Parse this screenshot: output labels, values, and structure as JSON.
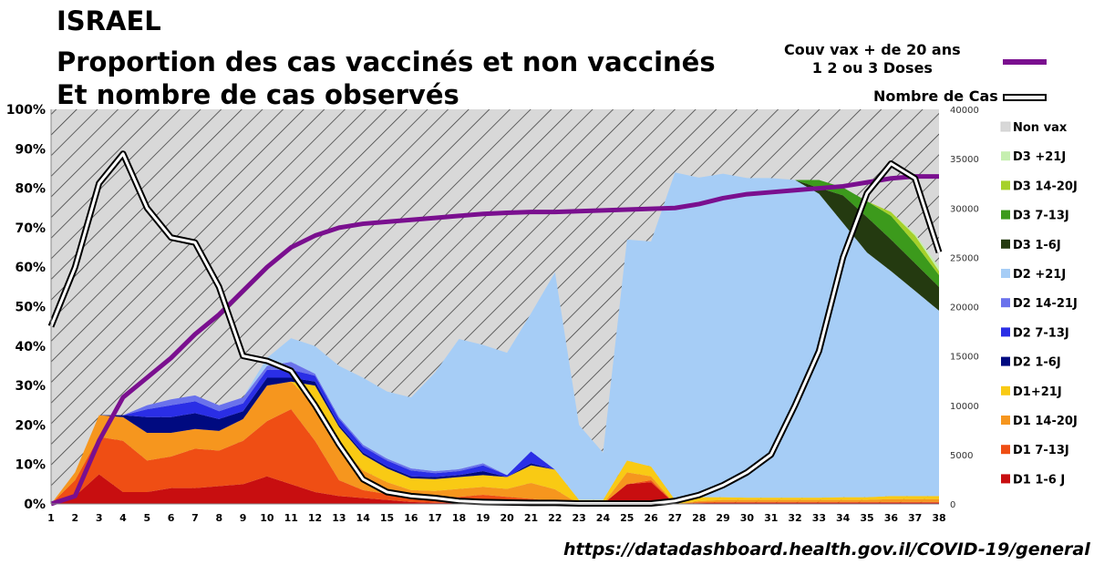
{
  "header": {
    "line1": "ISRAEL",
    "line2": "Proportion des cas vaccinés et non vaccinés",
    "line3": "Et nombre de cas observés"
  },
  "source": "https://datadashboard.health.gov.il/COVID-19/general",
  "top_legend": {
    "couv_line1": "Couv vax + de 20 ans",
    "couv_line2": "1 2 ou 3 Doses",
    "cases_label": "Nombre de Cas"
  },
  "colors": {
    "non_vax": "#d8d8d8",
    "D3_21": "#c6efb0",
    "D3_14_20": "#a6d12a",
    "D3_7_13": "#3c9a1c",
    "D3_1_6": "#243a10",
    "D2_21": "#a6cdf6",
    "D2_14_21": "#6a72ec",
    "D2_7_13": "#2a2ee6",
    "D2_1_6": "#000a80",
    "D1_21": "#f9ca14",
    "D1_14_20": "#f6961e",
    "D1_7_13": "#ef4e14",
    "D1_1_6": "#c80e10",
    "coverage": "#7a0f8f"
  },
  "chart_data": {
    "type": "area",
    "title": "Proportion des cas vaccinés et non vaccinés",
    "x": [
      1,
      2,
      3,
      4,
      5,
      6,
      7,
      8,
      9,
      10,
      11,
      12,
      13,
      14,
      15,
      16,
      17,
      18,
      19,
      20,
      21,
      22,
      23,
      24,
      25,
      26,
      27,
      28,
      29,
      30,
      31,
      32,
      33,
      34,
      35,
      36,
      37,
      38
    ],
    "ylim_left": [
      0,
      100
    ],
    "ylim_right": [
      0,
      40000
    ],
    "y_ticks_left": [
      "0%",
      "10%",
      "20%",
      "30%",
      "40%",
      "50%",
      "60%",
      "70%",
      "80%",
      "90%",
      "100%"
    ],
    "y_ticks_right": [
      "0",
      "5000",
      "10000",
      "15000",
      "20000",
      "25000",
      "30000",
      "35000",
      "40000"
    ],
    "stack_order": [
      "D1_1_6",
      "D1_7_13",
      "D1_14_20",
      "D1_21",
      "D2_1_6",
      "D2_7_13",
      "D2_14_21",
      "D2_21",
      "D3_1_6",
      "D3_7_13",
      "D3_14_20",
      "D3_21"
    ],
    "series": [
      {
        "key": "D1_1_6",
        "name": "D1 1-6 J",
        "values": [
          0,
          2,
          7.5,
          3,
          3,
          4,
          4,
          4.5,
          5,
          7,
          5,
          3,
          2,
          1.5,
          1,
          0.5,
          0.3,
          0.3,
          0.3,
          0.3,
          0.3,
          0.2,
          0,
          0,
          5,
          5.5,
          0,
          0.2,
          0.3,
          0.3,
          0.3,
          0.3,
          0.3,
          0.3,
          0.3,
          0.3,
          0.3,
          0.3
        ]
      },
      {
        "key": "D1_7_13",
        "name": "D1 7-13J",
        "values": [
          0,
          4,
          9.5,
          13,
          8,
          8,
          10,
          9,
          11,
          14,
          19,
          13,
          4,
          2,
          1.5,
          1,
          1,
          1.5,
          2,
          1.5,
          1,
          0.5,
          0,
          0,
          0,
          0.5,
          0,
          0.2,
          0.2,
          0.2,
          0.2,
          0.2,
          0.2,
          0.2,
          0.2,
          0.2,
          0.2,
          0.2
        ]
      },
      {
        "key": "D1_14_20",
        "name": "D1 14-20J",
        "values": [
          0,
          2,
          5.5,
          6,
          7,
          6,
          5,
          5,
          5.5,
          9,
          7,
          9,
          9,
          5,
          3,
          2,
          2,
          2,
          2,
          2,
          4,
          3,
          0,
          0,
          3,
          1,
          0,
          0.3,
          0.5,
          0.5,
          0.5,
          0.5,
          0.5,
          0.5,
          0.5,
          0.7,
          0.7,
          0.7
        ]
      },
      {
        "key": "D1_21",
        "name": "D1+21J",
        "values": [
          0,
          0,
          0,
          0,
          0,
          0,
          0,
          0,
          0,
          0,
          0,
          5,
          4.5,
          4,
          3.5,
          3,
          3,
          3,
          3,
          3,
          4.5,
          5,
          1,
          1,
          3,
          2.5,
          1,
          1,
          0.7,
          0.6,
          0.6,
          0.6,
          0.6,
          0.7,
          0.7,
          0.8,
          0.8,
          0.8
        ]
      },
      {
        "key": "D2_1_6",
        "name": "D2 1-6J",
        "values": [
          0,
          0,
          0,
          0.5,
          4,
          4,
          4,
          3,
          2,
          2,
          1,
          1,
          0.5,
          0.5,
          0.5,
          0.5,
          0.5,
          0.5,
          1,
          0,
          0.5,
          0,
          0,
          0,
          0,
          0,
          0,
          0,
          0,
          0,
          0,
          0,
          0,
          0,
          0,
          0,
          0,
          0
        ]
      },
      {
        "key": "D2_7_13",
        "name": "D2 7-13J",
        "values": [
          0,
          0,
          0,
          0,
          2,
          3,
          3,
          2,
          2,
          2,
          2,
          1.5,
          1.5,
          1.5,
          1.5,
          1.5,
          1,
          1,
          1.5,
          0.5,
          3,
          0,
          0,
          0,
          0,
          0,
          0,
          0,
          0,
          0,
          0,
          0,
          0,
          0,
          0,
          0,
          0,
          0
        ]
      },
      {
        "key": "D2_14_21",
        "name": "D2 14-21J",
        "values": [
          0,
          0,
          0,
          0,
          1,
          1.5,
          1.5,
          1.5,
          1.5,
          1,
          2,
          0.5,
          0.5,
          0.5,
          0.5,
          0.5,
          0.5,
          0.5,
          0.5,
          0,
          0,
          0,
          0,
          0,
          0,
          0,
          0,
          0,
          0,
          0,
          0,
          0,
          0,
          0,
          0,
          0,
          0,
          0
        ]
      },
      {
        "key": "D2_21",
        "name": "D2 +21J",
        "values": [
          0,
          0,
          0,
          0,
          0,
          0,
          0,
          0,
          0,
          2,
          6,
          7,
          13,
          17,
          17,
          18,
          25,
          33,
          30,
          31,
          35,
          50,
          19,
          12,
          56,
          57,
          83,
          81,
          82,
          81,
          81,
          80.5,
          77,
          69.5,
          62,
          57,
          52,
          47
        ]
      },
      {
        "key": "D3_1_6",
        "name": "D3 1-6J",
        "values": [
          0,
          0,
          0,
          0,
          0,
          0,
          0,
          0,
          0,
          0,
          0,
          0,
          0,
          0,
          0,
          0,
          0,
          0,
          0,
          0,
          0,
          0,
          0,
          0,
          0,
          0,
          0,
          0,
          0,
          0,
          0,
          0,
          1.5,
          7,
          9,
          8,
          7,
          6
        ]
      },
      {
        "key": "D3_7_13",
        "name": "D3 7-13J",
        "values": [
          0,
          0,
          0,
          0,
          0,
          0,
          0,
          0,
          0,
          0,
          0,
          0,
          0,
          0,
          0,
          0,
          0,
          0,
          0,
          0,
          0,
          0,
          0,
          0,
          0,
          0,
          0,
          0,
          0,
          0,
          0,
          0,
          2,
          2,
          4,
          6,
          5,
          3
        ]
      },
      {
        "key": "D3_14_20",
        "name": "D3 14-20J",
        "values": [
          0,
          0,
          0,
          0,
          0,
          0,
          0,
          0,
          0,
          0,
          0,
          0,
          0,
          0,
          0,
          0,
          0,
          0,
          0,
          0,
          0,
          0,
          0,
          0,
          0,
          0,
          0,
          0,
          0,
          0,
          0,
          0,
          0,
          0,
          0,
          1,
          2,
          1
        ]
      },
      {
        "key": "D3_21",
        "name": "D3 +21J",
        "values": [
          0,
          0,
          0,
          0,
          0,
          0,
          0,
          0,
          0,
          0,
          0,
          0,
          0,
          0,
          0,
          0,
          0,
          0,
          0,
          0,
          0,
          0,
          0,
          0,
          0,
          0,
          0,
          0,
          0,
          0,
          0,
          0,
          0,
          0,
          0,
          0,
          0.5,
          1
        ]
      }
    ],
    "non_vax_name": "Non vax",
    "coverage": {
      "name": "Couv vax + de 20 ans 1 2 ou 3 Doses",
      "axis": "left",
      "values": [
        0,
        2,
        16,
        27,
        32,
        37,
        43,
        48,
        54,
        60,
        65,
        68,
        70,
        71,
        71.5,
        72,
        72.5,
        73,
        73.5,
        73.8,
        74,
        74,
        74.2,
        74.4,
        74.6,
        74.8,
        75,
        76,
        77.5,
        78.5,
        79,
        79.5,
        80,
        80.5,
        81.5,
        82.5,
        83,
        83
      ]
    },
    "cases": {
      "name": "Nombre de Cas",
      "axis": "right",
      "values": [
        18000,
        24000,
        32500,
        35500,
        30000,
        27000,
        26500,
        22000,
        15000,
        14500,
        13500,
        10000,
        6000,
        2500,
        1200,
        800,
        600,
        300,
        200,
        150,
        100,
        100,
        50,
        50,
        50,
        50,
        300,
        900,
        1900,
        3200,
        5000,
        10000,
        15500,
        25000,
        31500,
        34500,
        33000,
        25500
      ]
    }
  },
  "right_legend": [
    "Non vax",
    "D3 +21J",
    "D3 14-20J",
    "D3 7-13J",
    "D3 1-6J",
    "D2 +21J",
    "D2 14-21J",
    "D2 7-13J",
    "D2 1-6J",
    "D1+21J",
    "D1 14-20J",
    "D1 7-13J",
    "D1 1-6 J"
  ],
  "right_legend_keys": [
    "non_vax",
    "D3_21",
    "D3_14_20",
    "D3_7_13",
    "D3_1_6",
    "D2_21",
    "D2_14_21",
    "D2_7_13",
    "D2_1_6",
    "D1_21",
    "D1_14_20",
    "D1_7_13",
    "D1_1_6"
  ]
}
